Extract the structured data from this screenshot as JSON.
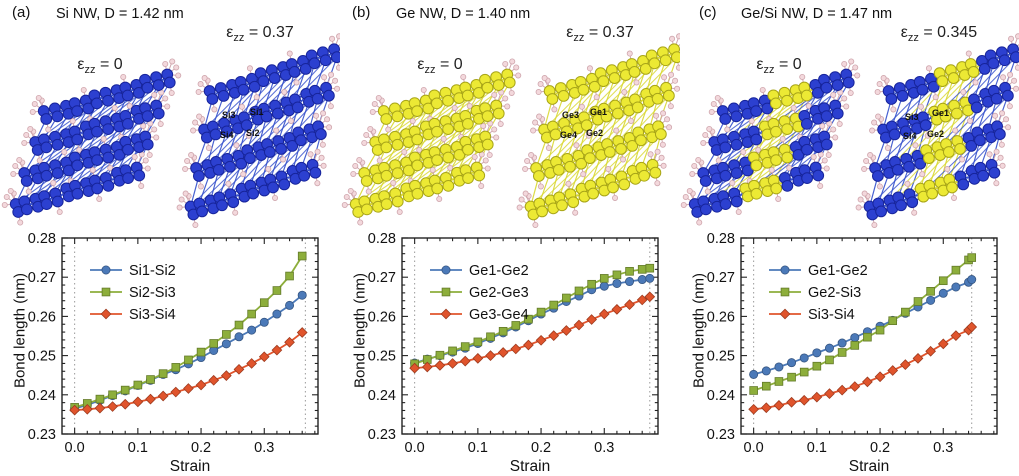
{
  "figure": {
    "panels": [
      {
        "label": "(a)",
        "title": "Si NW, D = 1.42 nm",
        "eps_symbol": "ε",
        "eps_sub": "zz",
        "eps_zero_rest": " = 0",
        "eps_max_rest": " = 0.37",
        "material": "si",
        "atom_labels": [
          "Si3",
          "Si1",
          "Si4",
          "Si2"
        ]
      },
      {
        "label": "(b)",
        "title": "Ge NW, D = 1.40 nm",
        "eps_symbol": "ε",
        "eps_sub": "zz",
        "eps_zero_rest": " = 0",
        "eps_max_rest": " = 0.37",
        "material": "ge",
        "atom_labels": [
          "Ge3",
          "Ge1",
          "Ge4",
          "Ge2"
        ]
      },
      {
        "label": "(c)",
        "title": "Ge/Si NW, D = 1.47 nm",
        "eps_symbol": "ε",
        "eps_sub": "zz",
        "eps_zero_rest": " = 0",
        "eps_max_rest": " = 0.345",
        "material": "gesi",
        "atom_labels": [
          "Si3",
          "Ge1",
          "Si4",
          "Ge2"
        ]
      }
    ]
  },
  "chart_data": [
    {
      "type": "line",
      "title": "",
      "xlabel": "Strain",
      "ylabel": "Bond length (nm)",
      "xlim": [
        -0.02,
        0.385
      ],
      "ylim": [
        0.23,
        0.28
      ],
      "x_ticks": [
        0.0,
        0.1,
        0.2,
        0.3
      ],
      "y_ticks": [
        0.23,
        0.24,
        0.25,
        0.26,
        0.27,
        0.28
      ],
      "x_minor_step": 0.02,
      "y_minor_step": 0.002,
      "grid": false,
      "legend_position": "upper-left",
      "dashed_lines_x": [
        0.0,
        0.365
      ],
      "x": [
        0.0,
        0.02,
        0.04,
        0.06,
        0.08,
        0.1,
        0.12,
        0.14,
        0.16,
        0.18,
        0.2,
        0.22,
        0.24,
        0.26,
        0.28,
        0.3,
        0.32,
        0.34,
        0.36
      ],
      "series": [
        {
          "name": "Si1-Si2",
          "color": "#4b79b8",
          "marker": "circle",
          "values": [
            0.2365,
            0.2374,
            0.2386,
            0.2398,
            0.241,
            0.2424,
            0.2437,
            0.2452,
            0.2464,
            0.2479,
            0.2495,
            0.2513,
            0.253,
            0.2548,
            0.2565,
            0.2585,
            0.2606,
            0.2628,
            0.2654
          ]
        },
        {
          "name": "Si2-Si3",
          "color": "#8dae3b",
          "marker": "square",
          "values": [
            0.2368,
            0.2378,
            0.2389,
            0.24,
            0.2412,
            0.2425,
            0.2439,
            0.2454,
            0.247,
            0.2489,
            0.2509,
            0.2531,
            0.2554,
            0.2578,
            0.2606,
            0.2635,
            0.2666,
            0.2703,
            0.2754
          ]
        },
        {
          "name": "Si3-Si4",
          "color": "#e0542c",
          "marker": "diamond",
          "values": [
            0.2361,
            0.2363,
            0.2366,
            0.237,
            0.2376,
            0.2382,
            0.2389,
            0.2397,
            0.2407,
            0.2416,
            0.2425,
            0.2437,
            0.2449,
            0.2465,
            0.248,
            0.2497,
            0.2514,
            0.2534,
            0.2559
          ]
        }
      ]
    },
    {
      "type": "line",
      "title": "",
      "xlabel": "Strain",
      "ylabel": "Bond length (nm)",
      "xlim": [
        -0.02,
        0.385
      ],
      "ylim": [
        0.23,
        0.28
      ],
      "x_ticks": [
        0.0,
        0.1,
        0.2,
        0.3
      ],
      "y_ticks": [
        0.23,
        0.24,
        0.25,
        0.26,
        0.27,
        0.28
      ],
      "x_minor_step": 0.02,
      "y_minor_step": 0.002,
      "grid": false,
      "legend_position": "upper-left",
      "dashed_lines_x": [
        0.0,
        0.372
      ],
      "x": [
        0.0,
        0.02,
        0.04,
        0.06,
        0.08,
        0.1,
        0.12,
        0.14,
        0.16,
        0.18,
        0.2,
        0.22,
        0.24,
        0.26,
        0.28,
        0.3,
        0.32,
        0.34,
        0.36,
        0.372
      ],
      "series": [
        {
          "name": "Ge1-Ge2",
          "color": "#4b79b8",
          "marker": "circle",
          "values": [
            0.2481,
            0.2491,
            0.25,
            0.2509,
            0.2519,
            0.2531,
            0.2544,
            0.2558,
            0.2573,
            0.2589,
            0.2606,
            0.2621,
            0.2638,
            0.2652,
            0.2668,
            0.2677,
            0.2684,
            0.2689,
            0.2694,
            0.2697
          ]
        },
        {
          "name": "Ge2-Ge3",
          "color": "#8dae3b",
          "marker": "square",
          "values": [
            0.2479,
            0.249,
            0.2501,
            0.2512,
            0.2523,
            0.2535,
            0.2548,
            0.2562,
            0.2577,
            0.2593,
            0.2611,
            0.2629,
            0.2647,
            0.2665,
            0.2682,
            0.2697,
            0.2706,
            0.2715,
            0.272,
            0.2723
          ]
        },
        {
          "name": "Ge3-Ge4",
          "color": "#e0542c",
          "marker": "diamond",
          "values": [
            0.2468,
            0.2471,
            0.2475,
            0.248,
            0.2486,
            0.2493,
            0.25,
            0.2508,
            0.2517,
            0.2527,
            0.2539,
            0.2551,
            0.2564,
            0.2578,
            0.2592,
            0.2606,
            0.2618,
            0.263,
            0.2642,
            0.265
          ]
        }
      ]
    },
    {
      "type": "line",
      "title": "",
      "xlabel": "Strain",
      "ylabel": "Bond length (nm)",
      "xlim": [
        -0.02,
        0.385
      ],
      "ylim": [
        0.23,
        0.28
      ],
      "x_ticks": [
        0.0,
        0.1,
        0.2,
        0.3
      ],
      "y_ticks": [
        0.23,
        0.24,
        0.25,
        0.26,
        0.27,
        0.28
      ],
      "x_minor_step": 0.02,
      "y_minor_step": 0.002,
      "grid": false,
      "legend_position": "upper-left",
      "dashed_lines_x": [
        0.0,
        0.345
      ],
      "x": [
        0.0,
        0.02,
        0.04,
        0.06,
        0.08,
        0.1,
        0.12,
        0.14,
        0.16,
        0.18,
        0.2,
        0.22,
        0.24,
        0.26,
        0.28,
        0.3,
        0.32,
        0.34,
        0.345
      ],
      "series": [
        {
          "name": "Ge1-Ge2",
          "color": "#4b79b8",
          "marker": "circle",
          "values": [
            0.2452,
            0.2461,
            0.2471,
            0.2482,
            0.2494,
            0.2507,
            0.2519,
            0.2532,
            0.2546,
            0.2561,
            0.2575,
            0.259,
            0.2608,
            0.2624,
            0.2641,
            0.2659,
            0.2675,
            0.2687,
            0.2694
          ]
        },
        {
          "name": "Ge2-Si3",
          "color": "#8dae3b",
          "marker": "square",
          "values": [
            0.2411,
            0.2422,
            0.2434,
            0.2445,
            0.2458,
            0.2473,
            0.2489,
            0.2508,
            0.2526,
            0.2547,
            0.2565,
            0.2589,
            0.2611,
            0.2638,
            0.2664,
            0.2691,
            0.2718,
            0.2744,
            0.275
          ]
        },
        {
          "name": "Si3-Si4",
          "color": "#e0542c",
          "marker": "diamond",
          "values": [
            0.2363,
            0.2367,
            0.2373,
            0.2381,
            0.2386,
            0.2394,
            0.2403,
            0.2412,
            0.2421,
            0.2433,
            0.2446,
            0.2462,
            0.2477,
            0.2493,
            0.2511,
            0.253,
            0.2551,
            0.2565,
            0.2573
          ]
        }
      ]
    }
  ],
  "colors": {
    "si_atom": "#2c40d0",
    "si_atom_edge": "#17249b",
    "si_bond": "#3550cc",
    "ge_atom": "#ece934",
    "ge_atom_edge": "#a8a518",
    "ge_bond": "#d9d832",
    "h_atom": "#f3d8dc",
    "h_atom_edge": "#cfa6ad",
    "dashed_line": "#9a9a9a",
    "axis": "#222222"
  }
}
